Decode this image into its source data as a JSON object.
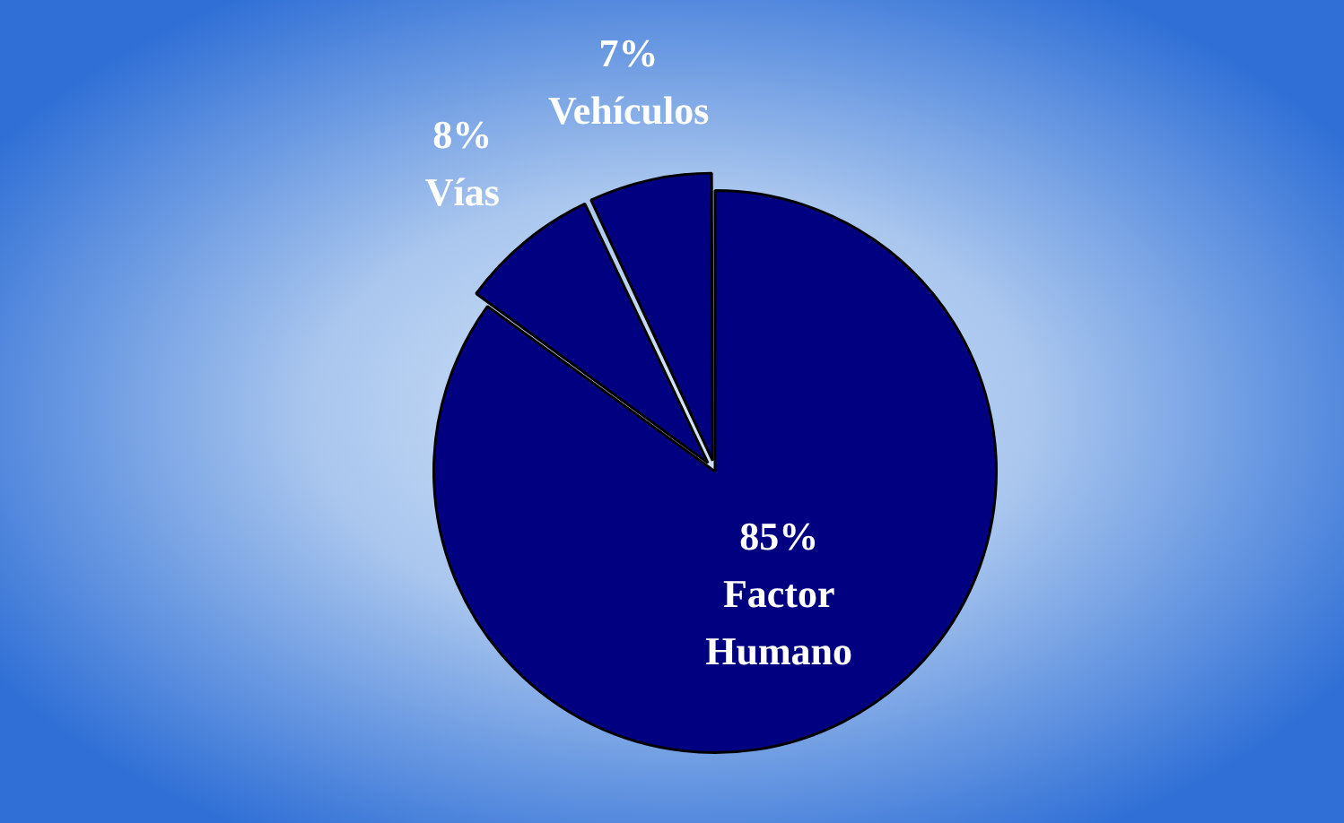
{
  "chart_data": {
    "type": "pie",
    "categories": [
      "Factor Humano",
      "Vías",
      "Vehículos"
    ],
    "values": [
      85,
      8,
      7
    ],
    "colors": [
      "#000080",
      "#000080",
      "#000080"
    ],
    "value_labels": [
      "85%",
      "8%",
      "7%"
    ],
    "legend": false
  }
}
